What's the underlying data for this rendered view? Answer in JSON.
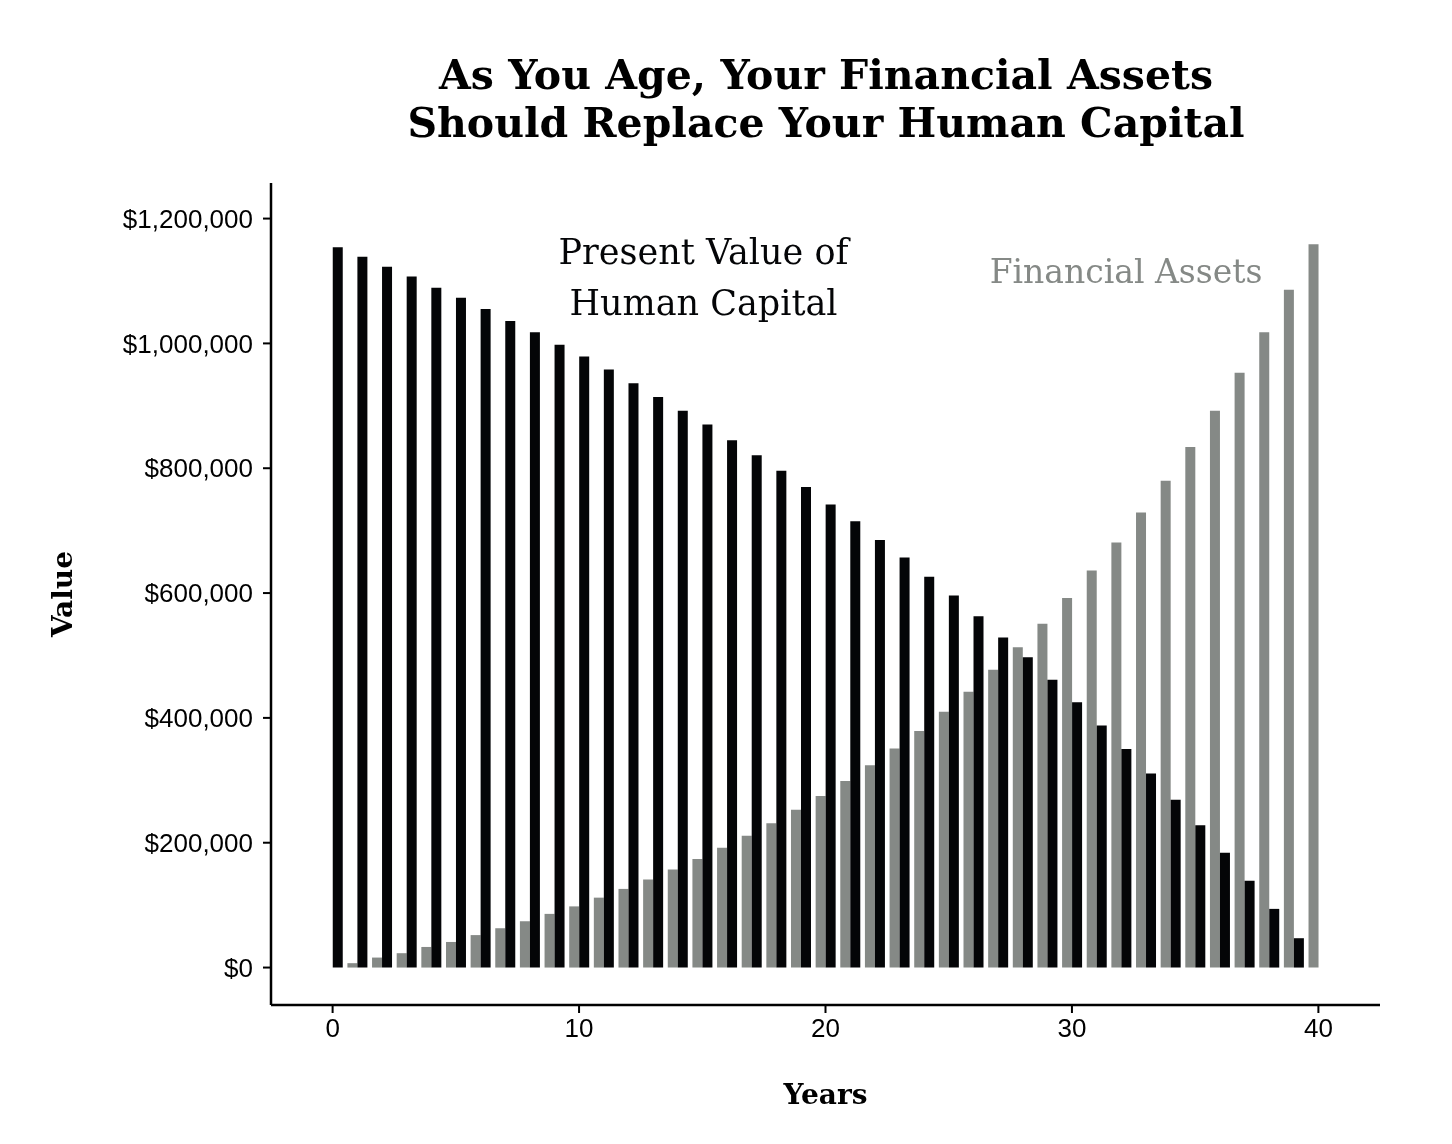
{
  "chart_data": {
    "type": "bar",
    "title": "As You Age, Your Financial Assets Should Replace Your Human Capital",
    "xlabel": "Years",
    "ylabel": "Value",
    "x": [
      0,
      1,
      2,
      3,
      4,
      5,
      6,
      7,
      8,
      9,
      10,
      11,
      12,
      13,
      14,
      15,
      16,
      17,
      18,
      19,
      20,
      21,
      22,
      23,
      24,
      25,
      26,
      27,
      28,
      29,
      30,
      31,
      32,
      33,
      34,
      35,
      36,
      37,
      38,
      39,
      40
    ],
    "series": [
      {
        "name": "Financial Assets",
        "color": "#858986",
        "values": [
          null,
          7000,
          16000,
          23000,
          33000,
          41000,
          52000,
          63000,
          74000,
          86000,
          98000,
          112000,
          126000,
          141000,
          157000,
          174000,
          192000,
          211000,
          231000,
          253000,
          275000,
          299000,
          324000,
          351000,
          379000,
          410000,
          442000,
          477000,
          513000,
          551000,
          592000,
          636000,
          681000,
          729000,
          780000,
          834000,
          892000,
          953000,
          1018000,
          1086000,
          1159000
        ]
      },
      {
        "name": "Present Value of Human Capital",
        "color": "#040507",
        "values": [
          1154000,
          1139000,
          1123000,
          1107000,
          1089000,
          1073000,
          1055000,
          1036000,
          1018000,
          998000,
          979000,
          958000,
          936000,
          914000,
          892000,
          870000,
          845000,
          821000,
          796000,
          770000,
          742000,
          715000,
          685000,
          657000,
          626000,
          596000,
          563000,
          529000,
          497000,
          461000,
          425000,
          388000,
          350000,
          311000,
          269000,
          228000,
          184000,
          139000,
          94000,
          47000,
          null
        ]
      }
    ],
    "xlim": [
      -2.5,
      42.5
    ],
    "xticks": [
      0,
      10,
      20,
      30,
      40
    ],
    "ylim": [
      -60000,
      1257000
    ],
    "yticks": [
      {
        "value": 0,
        "label": "$0"
      },
      {
        "value": 200000,
        "label": "$200,000"
      },
      {
        "value": 400000,
        "label": "$400,000"
      },
      {
        "value": 600000,
        "label": "$600,000"
      },
      {
        "value": 800000,
        "label": "$800,000"
      },
      {
        "value": 1000000,
        "label": "$1,000,000"
      },
      {
        "value": 1200000,
        "label": "$1,200,000"
      }
    ]
  }
}
